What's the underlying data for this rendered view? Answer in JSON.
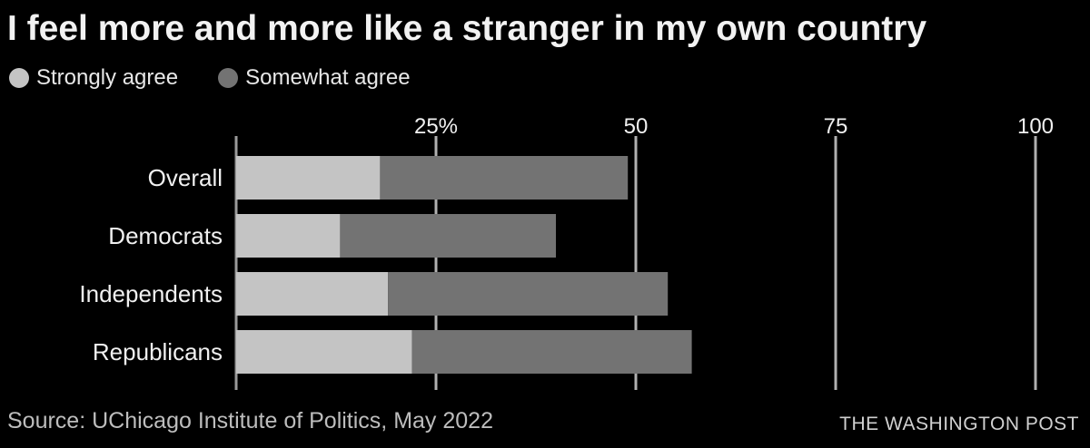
{
  "chart_data": {
    "type": "bar",
    "stacked": true,
    "orientation": "horizontal",
    "title": "I feel more and more like a stranger in my own country",
    "categories": [
      "Overall",
      "Democrats",
      "Independents",
      "Republicans"
    ],
    "series": [
      {
        "name": "Strongly agree",
        "color": "#c4c4c4",
        "values": [
          18,
          13,
          19,
          22
        ]
      },
      {
        "name": "Somewhat agree",
        "color": "#737373",
        "values": [
          31,
          27,
          35,
          35
        ]
      }
    ],
    "xlim": [
      0,
      100
    ],
    "xticks": [
      {
        "value": 25,
        "label": "25%"
      },
      {
        "value": 50,
        "label": "50"
      },
      {
        "value": 75,
        "label": "75"
      },
      {
        "value": 100,
        "label": "100"
      }
    ],
    "grid": true,
    "legend_position": "top-left",
    "source": "Source: UChicago Institute of Politics, May 2022",
    "credit": "THE WASHINGTON POST"
  }
}
